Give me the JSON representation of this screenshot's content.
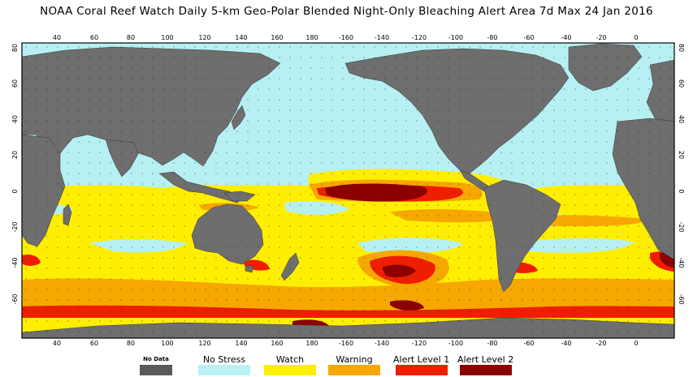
{
  "title": "NOAA Coral Reef Watch Daily 5-km Geo-Polar Blended Night-Only Bleaching Alert Area 7d Max 24 Jan 2016",
  "map": {
    "lon_ticks": [
      "40",
      "60",
      "80",
      "100",
      "120",
      "140",
      "160",
      "180",
      "-160",
      "-140",
      "-120",
      "-100",
      "-80",
      "-60",
      "-40",
      "-20",
      "0"
    ],
    "lat_ticks": [
      "80",
      "60",
      "40",
      "20",
      "0",
      "-20",
      "-40",
      "-60"
    ],
    "colors": {
      "ocean": "#b6f0f2",
      "land": "#6e6e6e",
      "watch": "#ffee00",
      "warning": "#f6a800",
      "alert1": "#f01e00",
      "alert2": "#8c0000"
    }
  },
  "legend": [
    {
      "label": "No Data",
      "color": "#5a5a5a"
    },
    {
      "label": "No Stress",
      "color": "#b8f2f5"
    },
    {
      "label": "Watch",
      "color": "#ffee00"
    },
    {
      "label": "Warning",
      "color": "#f6a800"
    },
    {
      "label": "Alert Level 1",
      "color": "#f01e00"
    },
    {
      "label": "Alert Level 2",
      "color": "#8c0000"
    }
  ]
}
